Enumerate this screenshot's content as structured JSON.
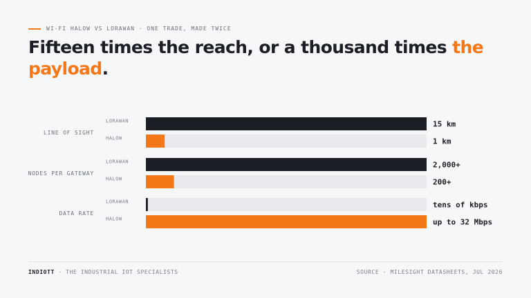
{
  "eyebrow": "WI-FI HALOW VS LORAWAN · ONE TRADE, MADE TWICE",
  "headline": {
    "part1": "Fifteen times the reach, or a thousand times ",
    "accent": "the payload",
    "end": "."
  },
  "footer": {
    "brand": "INDIOTT",
    "tagline": " · THE INDUSTRIAL IOT SPECIALISTS",
    "source": "SOURCE · MILESIGHT DATASHEETS, JUL 2026"
  },
  "colors": {
    "accent": "#f47718",
    "dark": "#1b1e24",
    "track": "#e8eaed"
  },
  "chart_data": {
    "type": "bar",
    "orientation": "horizontal",
    "grouped": true,
    "series": [
      "LORAWAN",
      "HALOW"
    ],
    "groups": [
      {
        "label": "LINE OF SIGHT",
        "rows": [
          {
            "series": "LORAWAN",
            "fraction": 1.0,
            "value_label": "15 km"
          },
          {
            "series": "HALOW",
            "fraction": 0.067,
            "value_label": "1 km"
          }
        ]
      },
      {
        "label": "NODES PER GATEWAY",
        "rows": [
          {
            "series": "LORAWAN",
            "fraction": 1.0,
            "value_label": "2,000+"
          },
          {
            "series": "HALOW",
            "fraction": 0.1,
            "value_label": "200+"
          }
        ]
      },
      {
        "label": "DATA RATE",
        "rows": [
          {
            "series": "LORAWAN",
            "fraction": 0.007,
            "value_label": "tens of kbps"
          },
          {
            "series": "HALOW",
            "fraction": 1.0,
            "value_label": "up to 32 Mbps"
          }
        ]
      }
    ]
  }
}
